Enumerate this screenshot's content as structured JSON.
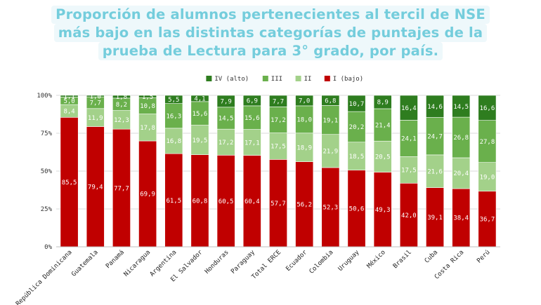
{
  "title_lines": [
    "Proporción de alumnos pertenecientes al tercil de NSE",
    "más bajo en las distintas categorías de puntajes de la",
    "prueba de Lectura para 3° grado, por país."
  ],
  "chart_data": {
    "type": "bar",
    "stacked": true,
    "title": "Proporción de alumnos pertenecientes al tercil de NSE más bajo en las distintas categorías de puntajes de la prueba de Lectura para 3° grado, por país.",
    "categories": [
      "República Dominicana",
      "Guatemala",
      "Panamá",
      "Nicaragua",
      "Argentina",
      "El Salvador",
      "Honduras",
      "Paraguay",
      "Total ERCE",
      "Ecuador",
      "Colombia",
      "Uruguay",
      "México",
      "Brasil",
      "Cuba",
      "Costa Rica",
      "Perú"
    ],
    "series": [
      {
        "name": "I (bajo)",
        "color": "#c00000",
        "values": [
          85.5,
          79.4,
          77.7,
          69.9,
          61.5,
          60.8,
          60.5,
          60.4,
          57.7,
          56.2,
          52.3,
          50.6,
          49.3,
          42.0,
          39.1,
          38.4,
          36.7
        ]
      },
      {
        "name": "II",
        "color": "#a3d18a",
        "values": [
          8.4,
          11.9,
          12.3,
          17.8,
          16.8,
          19.5,
          17.2,
          17.1,
          17.5,
          18.9,
          21.9,
          18.5,
          20.5,
          17.5,
          21.6,
          20.4,
          19.0
        ]
      },
      {
        "name": "III",
        "color": "#6ab04c",
        "values": [
          5.0,
          7.7,
          8.2,
          10.8,
          16.3,
          15.6,
          14.5,
          15.6,
          17.2,
          18.0,
          19.1,
          20.2,
          21.4,
          24.1,
          24.7,
          26.8,
          27.8
        ]
      },
      {
        "name": "IV (alto)",
        "color": "#2e7d1f",
        "values": [
          1.1,
          1.0,
          1.8,
          1.5,
          5.5,
          4.1,
          7.9,
          6.9,
          7.7,
          7.0,
          6.8,
          10.7,
          8.9,
          16.4,
          14.6,
          14.5,
          16.6
        ]
      }
    ],
    "value_labels": [
      [
        "85,5",
        "79,4",
        "77,7",
        "69,9",
        "61,5",
        "60,8",
        "60,5",
        "60,4",
        "57,7",
        "56,2",
        "52,3",
        "50,6",
        "49,3",
        "42,0",
        "39,1",
        "38,4",
        "36,7"
      ],
      [
        "8,4",
        "11,9",
        "12,3",
        "17,8",
        "16,8",
        "19,5",
        "17,2",
        "17,1",
        "17,5",
        "18,9",
        "21,9",
        "18,5",
        "20,5",
        "17,5",
        "21,6",
        "20,4",
        "19,0"
      ],
      [
        "5,0",
        "7,7",
        "8,2",
        "10,8",
        "16,3",
        "15,6",
        "14,5",
        "15,6",
        "17,2",
        "18,0",
        "19,1",
        "20,2",
        "21,4",
        "24,1",
        "24,7",
        "26,8",
        "27,8"
      ],
      [
        "1,1",
        "1,0",
        "1,8",
        "1,5",
        "5,5",
        "4,1",
        "7,9",
        "6,9",
        "7,7",
        "7,0",
        "6,8",
        "10,7",
        "8,9",
        "16,4",
        "14,6",
        "14,5",
        "16,6"
      ]
    ],
    "legend_order": [
      "IV (alto)",
      "III",
      "II",
      "I (bajo)"
    ],
    "legend_position": "top",
    "ylim": [
      0,
      100
    ],
    "y_ticks": [
      "0%",
      "25%",
      "50%",
      "75%",
      "100%"
    ],
    "grid": true
  }
}
